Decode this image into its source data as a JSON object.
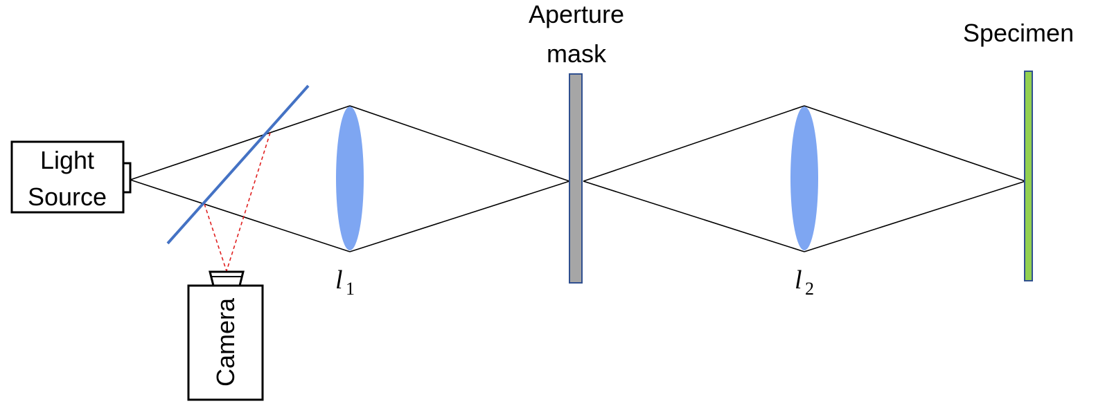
{
  "labels": {
    "light_source_line1": "Light",
    "light_source_line2": "Source",
    "camera": "Camera",
    "aperture_line1": "Aperture",
    "aperture_line2": "mask",
    "specimen": "Specimen",
    "lens1_symbol": "l",
    "lens1_subscript": "1",
    "lens2_symbol": "l",
    "lens2_subscript": "2"
  },
  "colors": {
    "lens_fill": "#7ea6f2",
    "beam_splitter": "#4472c4",
    "aperture_fill": "#a6a6a6",
    "aperture_stroke": "#2f4f8f",
    "specimen_fill": "#92d050",
    "specimen_stroke": "#2f4f8f",
    "camera_path": "#e02020",
    "rays": "#000000"
  }
}
